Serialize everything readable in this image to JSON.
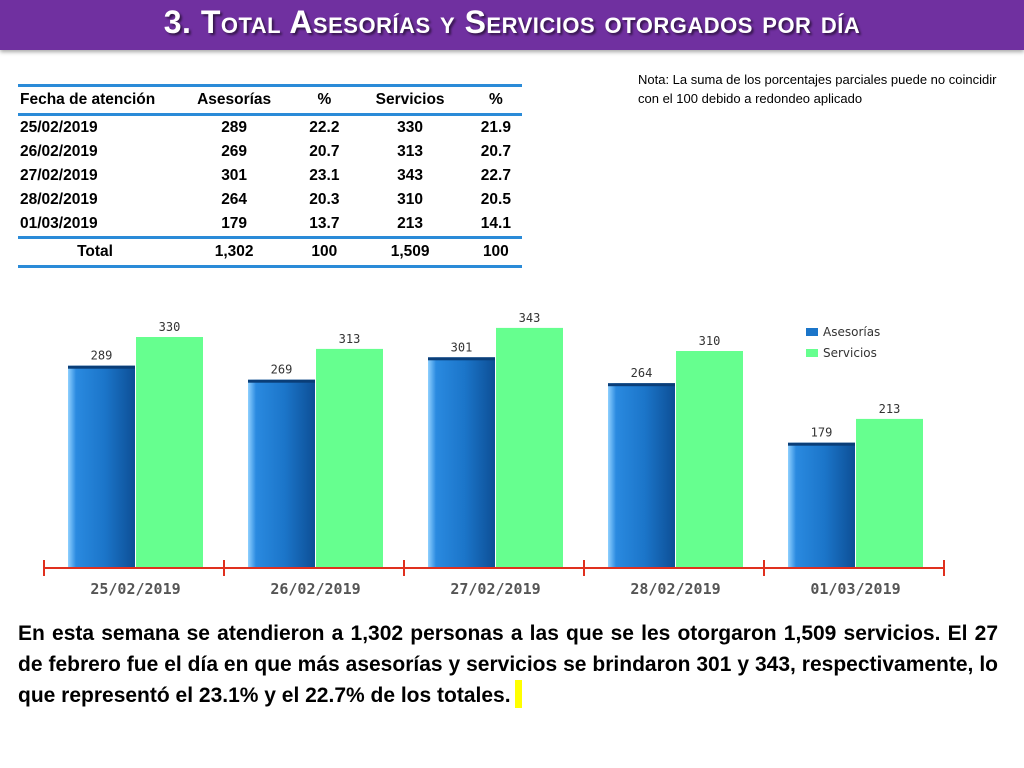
{
  "header": {
    "title": "3. Total Asesorías y Servicios otorgados por día",
    "color": "#7030a0"
  },
  "note": "Nota: La suma de los porcentajes parciales puede no coincidir con el 100 debido a redondeo aplicado",
  "table": {
    "columns": [
      "Fecha de atención",
      "Asesorías",
      "%",
      "Servicios",
      "%"
    ],
    "rows": [
      [
        "25/02/2019",
        "289",
        "22.2",
        "330",
        "21.9"
      ],
      [
        "26/02/2019",
        "269",
        "20.7",
        "313",
        "20.7"
      ],
      [
        "27/02/2019",
        "301",
        "23.1",
        "343",
        "22.7"
      ],
      [
        "28/02/2019",
        "264",
        "20.3",
        "310",
        "20.5"
      ],
      [
        "01/03/2019",
        "179",
        "13.7",
        "213",
        "14.1"
      ]
    ],
    "total": [
      "Total",
      "1,302",
      "100",
      "1,509",
      "100"
    ],
    "rule_color": "#2a8bd8"
  },
  "chart_data": {
    "type": "bar",
    "title": "",
    "xlabel": "",
    "ylabel": "",
    "ylim": [
      0,
      350
    ],
    "grid": false,
    "legend": "top-right",
    "categories": [
      "25/02/2019",
      "26/02/2019",
      "27/02/2019",
      "28/02/2019",
      "01/03/2019"
    ],
    "series": [
      {
        "name": "Asesorías",
        "values": [
          289,
          269,
          301,
          264,
          179
        ],
        "color": "#1b75c9"
      },
      {
        "name": "Servicios",
        "values": [
          330,
          313,
          343,
          310,
          213
        ],
        "color": "#66ff8f"
      }
    ]
  },
  "summary": "En esta semana se atendieron a 1,302 personas a las que se les otorgaron 1,509 servicios. El 27 de febrero fue el día en que más asesorías y servicios se brindaron 301 y 343, respectivamente, lo que representó el 23.1% y el 22.7% de los totales."
}
